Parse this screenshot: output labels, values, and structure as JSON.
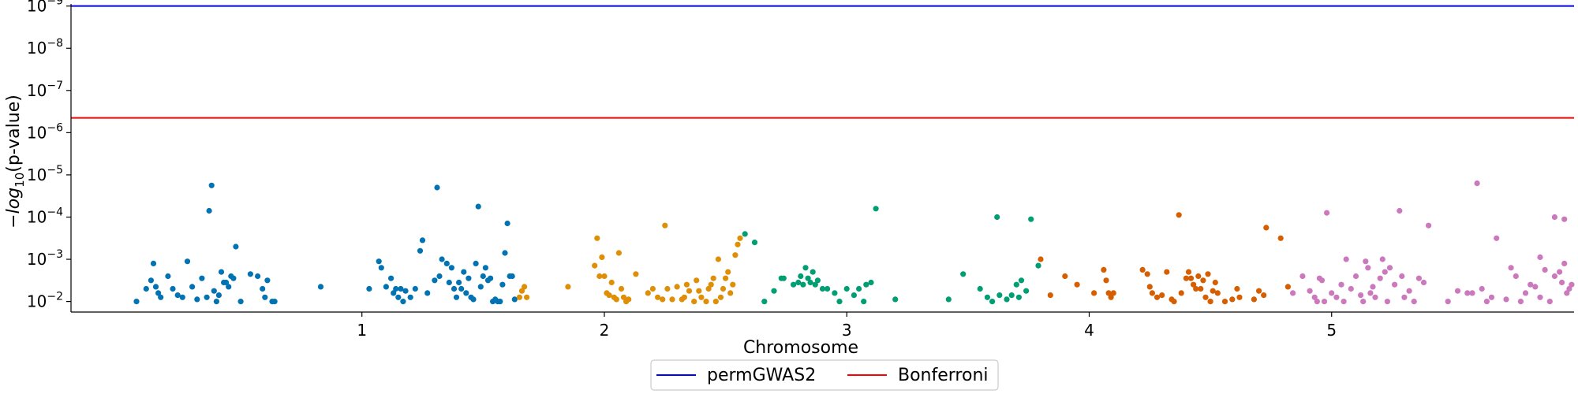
{
  "chart_data": {
    "type": "scatter",
    "title": "",
    "xlabel": "Chromosome",
    "ylabel": "−log₁₀(p-value)",
    "ylabel_parts": {
      "prefix": "−",
      "log": "log",
      "base": "10",
      "suffix": "(p-value)"
    },
    "y_scale": "log",
    "ylim_exponent": [
      -1.75,
      -9.05
    ],
    "y_ticks": [
      {
        "base": "10",
        "exp": "−9",
        "value": -9
      },
      {
        "base": "10",
        "exp": "−8",
        "value": -8
      },
      {
        "base": "10",
        "exp": "−7",
        "value": -7
      },
      {
        "base": "10",
        "exp": "−6",
        "value": -6
      },
      {
        "base": "10",
        "exp": "−5",
        "value": -5
      },
      {
        "base": "10",
        "exp": "−4",
        "value": -4
      },
      {
        "base": "10",
        "exp": "−3",
        "value": -3
      },
      {
        "base": "10",
        "exp": "−2",
        "value": -2
      }
    ],
    "x_ticks": [
      {
        "label": "1",
        "value": 1
      },
      {
        "label": "2",
        "value": 2
      },
      {
        "label": "3",
        "value": 3
      },
      {
        "label": "4",
        "value": 4
      },
      {
        "label": "5",
        "value": 5
      }
    ],
    "xlim": [
      -0.2,
      6.0
    ],
    "thresholds": [
      {
        "name": "permGWAS2",
        "value": -9,
        "color": "#0000ff"
      },
      {
        "name": "Bonferroni",
        "value": -6.35,
        "color": "#ff0000"
      }
    ],
    "legend_position": "bottom-center",
    "grid": false,
    "series": [
      {
        "chromosome": 1,
        "color": "#0173b2",
        "points": [
          [
            0.07,
            -2.0
          ],
          [
            0.11,
            -2.3
          ],
          [
            0.13,
            -2.5
          ],
          [
            0.14,
            -2.9
          ],
          [
            0.15,
            -2.35
          ],
          [
            0.16,
            -2.2
          ],
          [
            0.17,
            -2.1
          ],
          [
            0.2,
            -2.6
          ],
          [
            0.22,
            -2.3
          ],
          [
            0.24,
            -2.15
          ],
          [
            0.26,
            -2.1
          ],
          [
            0.28,
            -2.95
          ],
          [
            0.3,
            -2.35
          ],
          [
            0.32,
            -2.05
          ],
          [
            0.34,
            -2.55
          ],
          [
            0.36,
            -2.1
          ],
          [
            0.37,
            -4.15
          ],
          [
            0.38,
            -4.75
          ],
          [
            0.39,
            -2.25
          ],
          [
            0.4,
            -2.0
          ],
          [
            0.41,
            -2.15
          ],
          [
            0.42,
            -2.7
          ],
          [
            0.43,
            -2.45
          ],
          [
            0.44,
            -2.45
          ],
          [
            0.45,
            -2.35
          ],
          [
            0.46,
            -2.6
          ],
          [
            0.47,
            -2.55
          ],
          [
            0.48,
            -3.3
          ],
          [
            0.5,
            -2.0
          ],
          [
            0.54,
            -2.65
          ],
          [
            0.57,
            -2.6
          ],
          [
            0.59,
            -2.3
          ],
          [
            0.6,
            -2.1
          ],
          [
            0.61,
            -2.5
          ],
          [
            0.63,
            -2.0
          ],
          [
            0.64,
            -2.0
          ],
          [
            0.83,
            -2.35
          ],
          [
            1.03,
            -2.3
          ],
          [
            1.07,
            -2.95
          ],
          [
            1.08,
            -2.8
          ],
          [
            1.1,
            -2.35
          ],
          [
            1.12,
            -2.55
          ],
          [
            1.13,
            -2.2
          ],
          [
            1.14,
            -2.3
          ],
          [
            1.15,
            -2.1
          ],
          [
            1.16,
            -2.3
          ],
          [
            1.17,
            -2.0
          ],
          [
            1.18,
            -2.25
          ],
          [
            1.2,
            -2.1
          ],
          [
            1.22,
            -2.3
          ],
          [
            1.24,
            -3.2
          ],
          [
            1.25,
            -3.45
          ],
          [
            1.27,
            -2.2
          ],
          [
            1.3,
            -2.5
          ],
          [
            1.31,
            -4.7
          ],
          [
            1.32,
            -2.6
          ],
          [
            1.33,
            -3.0
          ],
          [
            1.35,
            -2.9
          ],
          [
            1.36,
            -2.45
          ],
          [
            1.37,
            -2.8
          ],
          [
            1.38,
            -2.3
          ],
          [
            1.39,
            -2.1
          ],
          [
            1.4,
            -2.45
          ],
          [
            1.41,
            -2.3
          ],
          [
            1.42,
            -2.7
          ],
          [
            1.43,
            -2.2
          ],
          [
            1.44,
            -2.55
          ],
          [
            1.45,
            -2.1
          ],
          [
            1.46,
            -2.05
          ],
          [
            1.47,
            -2.9
          ],
          [
            1.48,
            -4.25
          ],
          [
            1.49,
            -2.35
          ],
          [
            1.5,
            -2.6
          ],
          [
            1.51,
            -2.8
          ],
          [
            1.52,
            -2.5
          ],
          [
            1.53,
            -2.55
          ],
          [
            1.54,
            -2.0
          ],
          [
            1.55,
            -2.05
          ],
          [
            1.56,
            -2.0
          ],
          [
            1.57,
            -2.0
          ],
          [
            1.58,
            -2.4
          ],
          [
            1.59,
            -3.15
          ],
          [
            1.6,
            -3.85
          ],
          [
            1.61,
            -2.6
          ],
          [
            1.62,
            -2.6
          ],
          [
            1.63,
            -2.05
          ]
        ]
      },
      {
        "chromosome": 2,
        "color": "#de8f05",
        "points": [
          [
            1.65,
            -2.1
          ],
          [
            1.66,
            -2.25
          ],
          [
            1.67,
            -2.35
          ],
          [
            1.68,
            -2.1
          ],
          [
            1.85,
            -2.35
          ],
          [
            1.96,
            -2.85
          ],
          [
            1.97,
            -3.5
          ],
          [
            1.98,
            -2.6
          ],
          [
            1.99,
            -3.05
          ],
          [
            2.0,
            -2.6
          ],
          [
            2.01,
            -2.2
          ],
          [
            2.02,
            -2.15
          ],
          [
            2.03,
            -2.45
          ],
          [
            2.04,
            -2.1
          ],
          [
            2.05,
            -2.05
          ],
          [
            2.06,
            -3.15
          ],
          [
            2.07,
            -2.3
          ],
          [
            2.08,
            -2.1
          ],
          [
            2.09,
            -2.0
          ],
          [
            2.1,
            -2.05
          ],
          [
            2.13,
            -2.65
          ],
          [
            2.18,
            -2.2
          ],
          [
            2.2,
            -2.3
          ],
          [
            2.22,
            -2.1
          ],
          [
            2.24,
            -2.05
          ],
          [
            2.25,
            -3.8
          ],
          [
            2.26,
            -2.3
          ],
          [
            2.28,
            -2.05
          ],
          [
            2.3,
            -2.35
          ],
          [
            2.32,
            -2.05
          ],
          [
            2.33,
            -2.1
          ],
          [
            2.34,
            -2.4
          ],
          [
            2.35,
            -2.25
          ],
          [
            2.37,
            -2.0
          ],
          [
            2.38,
            -2.5
          ],
          [
            2.39,
            -2.25
          ],
          [
            2.4,
            -2.1
          ],
          [
            2.42,
            -2.0
          ],
          [
            2.43,
            -2.3
          ],
          [
            2.44,
            -2.4
          ],
          [
            2.45,
            -2.55
          ],
          [
            2.46,
            -2.0
          ],
          [
            2.47,
            -3.0
          ],
          [
            2.48,
            -2.1
          ],
          [
            2.49,
            -2.3
          ],
          [
            2.5,
            -2.55
          ],
          [
            2.51,
            -2.7
          ],
          [
            2.52,
            -2.2
          ],
          [
            2.53,
            -2.4
          ],
          [
            2.54,
            -3.1
          ],
          [
            2.55,
            -3.35
          ],
          [
            2.56,
            -3.5
          ]
        ]
      },
      {
        "chromosome": 3,
        "color": "#029e73",
        "points": [
          [
            2.58,
            -3.6
          ],
          [
            2.62,
            -3.4
          ],
          [
            2.66,
            -2.0
          ],
          [
            2.7,
            -2.25
          ],
          [
            2.73,
            -2.55
          ],
          [
            2.74,
            -2.55
          ],
          [
            2.78,
            -2.4
          ],
          [
            2.8,
            -2.45
          ],
          [
            2.81,
            -2.6
          ],
          [
            2.82,
            -2.4
          ],
          [
            2.83,
            -2.8
          ],
          [
            2.84,
            -2.55
          ],
          [
            2.85,
            -2.45
          ],
          [
            2.86,
            -2.7
          ],
          [
            2.87,
            -2.4
          ],
          [
            2.88,
            -2.5
          ],
          [
            2.9,
            -2.3
          ],
          [
            2.92,
            -2.3
          ],
          [
            2.95,
            -2.2
          ],
          [
            2.97,
            -2.0
          ],
          [
            3.0,
            -2.3
          ],
          [
            3.03,
            -2.15
          ],
          [
            3.05,
            -2.3
          ],
          [
            3.07,
            -2.0
          ],
          [
            3.08,
            -2.4
          ],
          [
            3.1,
            -2.45
          ],
          [
            3.12,
            -4.2
          ],
          [
            3.2,
            -2.05
          ],
          [
            3.42,
            -2.05
          ],
          [
            3.48,
            -2.65
          ],
          [
            3.55,
            -2.3
          ],
          [
            3.58,
            -2.1
          ],
          [
            3.6,
            -2.0
          ],
          [
            3.62,
            -4.0
          ],
          [
            3.63,
            -2.15
          ],
          [
            3.66,
            -2.05
          ],
          [
            3.68,
            -2.15
          ],
          [
            3.7,
            -2.4
          ],
          [
            3.71,
            -2.1
          ],
          [
            3.72,
            -2.5
          ],
          [
            3.74,
            -2.25
          ],
          [
            3.76,
            -3.95
          ],
          [
            3.79,
            -2.85
          ]
        ]
      },
      {
        "chromosome": 4,
        "color": "#d55e00",
        "points": [
          [
            3.8,
            -3.0
          ],
          [
            3.84,
            -2.15
          ],
          [
            3.9,
            -2.6
          ],
          [
            3.95,
            -2.4
          ],
          [
            4.02,
            -2.2
          ],
          [
            4.06,
            -2.75
          ],
          [
            4.07,
            -2.5
          ],
          [
            4.08,
            -2.2
          ],
          [
            4.09,
            -2.1
          ],
          [
            4.1,
            -2.2
          ],
          [
            4.22,
            -2.75
          ],
          [
            4.24,
            -2.65
          ],
          [
            4.25,
            -2.35
          ],
          [
            4.26,
            -2.2
          ],
          [
            4.28,
            -2.1
          ],
          [
            4.3,
            -2.15
          ],
          [
            4.32,
            -2.7
          ],
          [
            4.34,
            -2.05
          ],
          [
            4.35,
            -2.0
          ],
          [
            4.37,
            -4.05
          ],
          [
            4.38,
            -2.2
          ],
          [
            4.4,
            -2.55
          ],
          [
            4.41,
            -2.7
          ],
          [
            4.42,
            -2.55
          ],
          [
            4.43,
            -2.4
          ],
          [
            4.44,
            -2.3
          ],
          [
            4.45,
            -2.6
          ],
          [
            4.46,
            -2.3
          ],
          [
            4.47,
            -2.5
          ],
          [
            4.48,
            -2.1
          ],
          [
            4.49,
            -2.65
          ],
          [
            4.5,
            -2.0
          ],
          [
            4.51,
            -2.25
          ],
          [
            4.52,
            -2.45
          ],
          [
            4.53,
            -2.2
          ],
          [
            4.56,
            -2.0
          ],
          [
            4.59,
            -2.05
          ],
          [
            4.61,
            -2.3
          ],
          [
            4.62,
            -2.1
          ],
          [
            4.68,
            -2.05
          ],
          [
            4.7,
            -2.25
          ],
          [
            4.72,
            -2.15
          ],
          [
            4.73,
            -3.75
          ],
          [
            4.79,
            -3.5
          ],
          [
            4.82,
            -2.35
          ]
        ]
      },
      {
        "chromosome": 5,
        "color": "#cc78bc",
        "points": [
          [
            4.84,
            -2.2
          ],
          [
            4.88,
            -2.6
          ],
          [
            4.91,
            -2.25
          ],
          [
            4.93,
            -2.1
          ],
          [
            4.94,
            -2.0
          ],
          [
            4.95,
            -2.55
          ],
          [
            4.96,
            -2.5
          ],
          [
            4.97,
            -2.0
          ],
          [
            4.98,
            -4.1
          ],
          [
            5.0,
            -2.2
          ],
          [
            5.02,
            -2.1
          ],
          [
            5.04,
            -2.4
          ],
          [
            5.05,
            -2.0
          ],
          [
            5.06,
            -3.0
          ],
          [
            5.08,
            -2.3
          ],
          [
            5.1,
            -2.6
          ],
          [
            5.12,
            -2.15
          ],
          [
            5.13,
            -2.0
          ],
          [
            5.14,
            -2.95
          ],
          [
            5.15,
            -2.8
          ],
          [
            5.16,
            -2.2
          ],
          [
            5.17,
            -2.35
          ],
          [
            5.18,
            -2.1
          ],
          [
            5.2,
            -2.55
          ],
          [
            5.21,
            -3.0
          ],
          [
            5.22,
            -2.7
          ],
          [
            5.23,
            -2.0
          ],
          [
            5.24,
            -2.8
          ],
          [
            5.26,
            -2.4
          ],
          [
            5.28,
            -4.15
          ],
          [
            5.29,
            -2.6
          ],
          [
            5.3,
            -2.1
          ],
          [
            5.32,
            -2.25
          ],
          [
            5.34,
            -2.0
          ],
          [
            5.36,
            -2.55
          ],
          [
            5.38,
            -2.45
          ],
          [
            5.4,
            -3.8
          ],
          [
            5.48,
            -2.0
          ],
          [
            5.52,
            -2.25
          ],
          [
            5.56,
            -2.2
          ],
          [
            5.58,
            -2.2
          ],
          [
            5.6,
            -4.8
          ],
          [
            5.62,
            -2.3
          ],
          [
            5.64,
            -2.0
          ],
          [
            5.66,
            -2.1
          ],
          [
            5.68,
            -3.5
          ],
          [
            5.72,
            -2.05
          ],
          [
            5.74,
            -2.8
          ],
          [
            5.76,
            -2.6
          ],
          [
            5.78,
            -2.0
          ],
          [
            5.8,
            -2.2
          ],
          [
            5.82,
            -2.4
          ],
          [
            5.84,
            -2.35
          ],
          [
            5.86,
            -2.1
          ],
          [
            5.88,
            -2.75
          ],
          [
            5.9,
            -2.0
          ],
          [
            5.92,
            -2.6
          ],
          [
            5.94,
            -2.7
          ],
          [
            5.95,
            -2.45
          ],
          [
            5.96,
            -2.9
          ],
          [
            5.97,
            -2.2
          ],
          [
            5.98,
            -2.3
          ],
          [
            5.99,
            -2.4
          ],
          [
            5.86,
            -3.05
          ],
          [
            5.92,
            -4.0
          ],
          [
            5.96,
            -3.95
          ]
        ]
      }
    ]
  }
}
